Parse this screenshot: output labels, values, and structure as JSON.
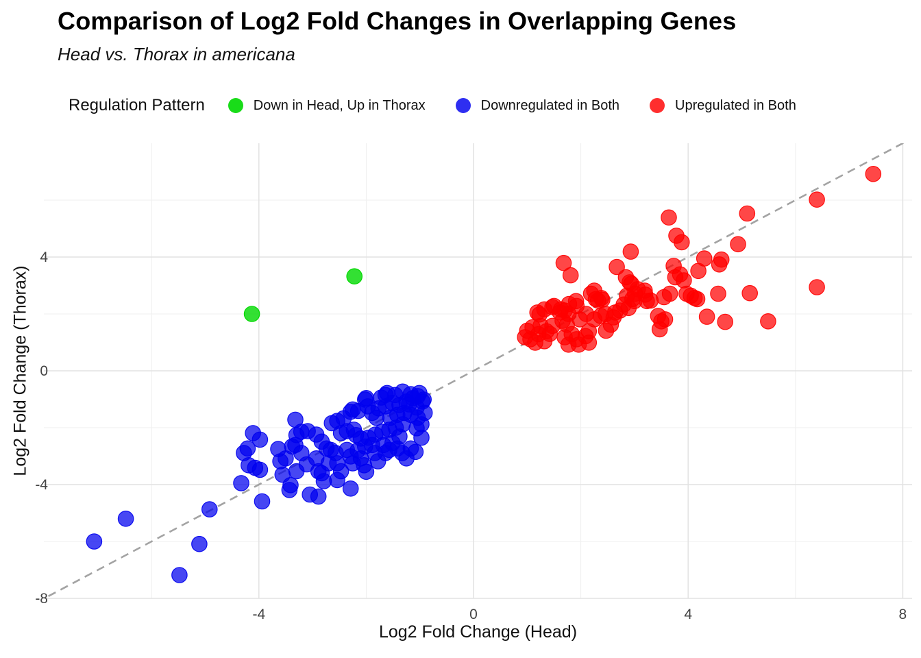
{
  "chart_data": {
    "type": "scatter",
    "title": "Comparison of Log2 Fold Changes in Overlapping Genes",
    "subtitle": "Head vs. Thorax in americana",
    "legend_title": "Regulation Pattern",
    "legend_position": "top",
    "xlabel": "Log2 Fold Change (Head)",
    "ylabel": "Log2 Fold Change (Thorax)",
    "xlim": [
      -8.03,
      8.17
    ],
    "ylim": [
      -8.0,
      8.0
    ],
    "x_ticks": [
      -4,
      0,
      4,
      8
    ],
    "y_ticks": [
      -8,
      -4,
      0,
      4
    ],
    "x_minor_ticks": [
      -6,
      -2,
      2,
      6
    ],
    "y_minor_ticks": [
      -6,
      -2,
      2,
      6
    ],
    "grid": "on",
    "background": "#ffffff",
    "grid_major_color": "#e2e2e2",
    "grid_minor_color": "#efefef",
    "reference_line": {
      "description": "y = x identity line",
      "style": "dashed",
      "color": "#a3a3a3"
    },
    "series": [
      {
        "name": "Down in Head, Up in Thorax",
        "color": "#00d800",
        "opacity": 0.8,
        "points": [
          [
            -4.13,
            2.0
          ],
          [
            -2.22,
            3.32
          ]
        ]
      },
      {
        "name": "Downregulated in Both",
        "color": "#0000ee",
        "opacity": 0.72,
        "points": [
          [
            -7.07,
            -6.0
          ],
          [
            -6.48,
            -5.2
          ],
          [
            -5.48,
            -7.18
          ],
          [
            -5.11,
            -6.09
          ],
          [
            -4.92,
            -4.87
          ],
          [
            -4.33,
            -3.95
          ],
          [
            -4.28,
            -2.89
          ],
          [
            -4.21,
            -2.73
          ],
          [
            -4.19,
            -3.32
          ],
          [
            -4.11,
            -2.19
          ],
          [
            -4.07,
            -3.41
          ],
          [
            -3.98,
            -2.42
          ],
          [
            -3.98,
            -3.48
          ],
          [
            -3.94,
            -4.59
          ],
          [
            -3.64,
            -2.75
          ],
          [
            -3.6,
            -3.18
          ],
          [
            -3.56,
            -3.65
          ],
          [
            -3.5,
            -3.08
          ],
          [
            -3.43,
            -4.19
          ],
          [
            -3.41,
            -4.02
          ],
          [
            -3.38,
            -2.66
          ],
          [
            -3.32,
            -1.72
          ],
          [
            -3.32,
            -2.61
          ],
          [
            -3.3,
            -2.26
          ],
          [
            -3.3,
            -3.53
          ],
          [
            -3.21,
            -2.14
          ],
          [
            -3.21,
            -2.89
          ],
          [
            -3.11,
            -3.29
          ],
          [
            -3.09,
            -2.12
          ],
          [
            -3.05,
            -4.35
          ],
          [
            -2.93,
            -2.24
          ],
          [
            -2.93,
            -3.08
          ],
          [
            -2.89,
            -3.53
          ],
          [
            -2.89,
            -4.42
          ],
          [
            -2.83,
            -2.49
          ],
          [
            -2.83,
            -3.6
          ],
          [
            -2.79,
            -3.88
          ],
          [
            -2.74,
            -2.73
          ],
          [
            -2.7,
            -3.25
          ],
          [
            -2.66,
            -2.78
          ],
          [
            -2.64,
            -1.84
          ],
          [
            -2.57,
            -2.89
          ],
          [
            -2.54,
            -1.76
          ],
          [
            -2.54,
            -3.25
          ],
          [
            -2.54,
            -3.84
          ],
          [
            -2.47,
            -2.19
          ],
          [
            -2.47,
            -3.53
          ],
          [
            -2.42,
            -1.67
          ],
          [
            -2.36,
            -2.12
          ],
          [
            -2.36,
            -2.78
          ],
          [
            -2.29,
            -1.44
          ],
          [
            -2.29,
            -3.01
          ],
          [
            -2.29,
            -4.14
          ],
          [
            -2.25,
            -1.36
          ],
          [
            -2.25,
            -3.25
          ],
          [
            -2.23,
            -2.07
          ],
          [
            -2.19,
            -2.26
          ],
          [
            -2.16,
            -2.8
          ],
          [
            -2.15,
            -1.41
          ],
          [
            -2.1,
            -2.38
          ],
          [
            -2.1,
            -3.08
          ],
          [
            -2.04,
            -3.32
          ],
          [
            -2.02,
            -1.01
          ],
          [
            -2.02,
            -2.66
          ],
          [
            -2.0,
            -0.96
          ],
          [
            -2.0,
            -3.55
          ],
          [
            -1.97,
            -1.25
          ],
          [
            -1.96,
            -2.35
          ],
          [
            -1.89,
            -1.48
          ],
          [
            -1.89,
            -2.61
          ],
          [
            -1.84,
            -2.89
          ],
          [
            -1.83,
            -2.24
          ],
          [
            -1.81,
            -1.65
          ],
          [
            -1.78,
            -3.18
          ],
          [
            -1.77,
            -1.32
          ],
          [
            -1.72,
            -0.94
          ],
          [
            -1.7,
            -2.14
          ],
          [
            -1.68,
            -2.61
          ],
          [
            -1.64,
            -0.85
          ],
          [
            -1.64,
            -1.25
          ],
          [
            -1.64,
            -2.89
          ],
          [
            -1.61,
            -0.78
          ],
          [
            -1.57,
            -2.07
          ],
          [
            -1.57,
            -2.78
          ],
          [
            -1.55,
            -1.65
          ],
          [
            -1.51,
            -1.13
          ],
          [
            -1.51,
            -2.54
          ],
          [
            -1.46,
            -0.85
          ],
          [
            -1.45,
            -2.0
          ],
          [
            -1.42,
            -1.55
          ],
          [
            -1.42,
            -2.73
          ],
          [
            -1.38,
            -1.2
          ],
          [
            -1.38,
            -2.31
          ],
          [
            -1.33,
            -2.89
          ],
          [
            -1.32,
            -0.73
          ],
          [
            -1.32,
            -1.88
          ],
          [
            -1.29,
            -1.48
          ],
          [
            -1.25,
            -1.08
          ],
          [
            -1.25,
            -3.08
          ],
          [
            -1.2,
            -1.18
          ],
          [
            -1.17,
            -0.82
          ],
          [
            -1.17,
            -1.55
          ],
          [
            -1.17,
            -2.73
          ],
          [
            -1.13,
            -0.96
          ],
          [
            -1.08,
            -2.85
          ],
          [
            -1.06,
            -1.29
          ],
          [
            -1.06,
            -2.02
          ],
          [
            -1.04,
            -0.89
          ],
          [
            -1.04,
            -1.65
          ],
          [
            -1.01,
            -0.78
          ],
          [
            -0.97,
            -1.88
          ],
          [
            -0.97,
            -2.35
          ],
          [
            -0.95,
            -1.08
          ],
          [
            -0.93,
            -1.01
          ],
          [
            -0.91,
            -1.48
          ]
        ]
      },
      {
        "name": "Upregulated in Both",
        "color": "#ff0000",
        "opacity": 0.72,
        "points": [
          [
            7.45,
            6.92
          ],
          [
            6.4,
            6.02
          ],
          [
            6.4,
            2.94
          ],
          [
            5.49,
            1.74
          ],
          [
            5.15,
            2.73
          ],
          [
            5.1,
            5.53
          ],
          [
            4.93,
            4.45
          ],
          [
            4.69,
            1.72
          ],
          [
            4.62,
            3.91
          ],
          [
            4.58,
            3.74
          ],
          [
            4.56,
            2.71
          ],
          [
            4.35,
            1.9
          ],
          [
            4.3,
            3.95
          ],
          [
            4.19,
            3.51
          ],
          [
            4.17,
            2.52
          ],
          [
            4.12,
            2.56
          ],
          [
            4.05,
            2.64
          ],
          [
            3.97,
            2.71
          ],
          [
            3.92,
            3.18
          ],
          [
            3.88,
            4.52
          ],
          [
            3.85,
            3.39
          ],
          [
            3.78,
            4.75
          ],
          [
            3.76,
            3.29
          ],
          [
            3.73,
            3.69
          ],
          [
            3.66,
            2.71
          ],
          [
            3.64,
            5.39
          ],
          [
            3.57,
            1.81
          ],
          [
            3.55,
            2.59
          ],
          [
            3.5,
            1.74
          ],
          [
            3.47,
            1.46
          ],
          [
            3.44,
            1.93
          ],
          [
            3.3,
            2.47
          ],
          [
            3.23,
            2.45
          ],
          [
            3.2,
            2.68
          ],
          [
            3.19,
            2.82
          ],
          [
            3.06,
            2.87
          ],
          [
            3.01,
            2.71
          ],
          [
            3.0,
            2.45
          ],
          [
            2.96,
            2.52
          ],
          [
            2.94,
            3.06
          ],
          [
            2.93,
            4.19
          ],
          [
            2.91,
            3.11
          ],
          [
            2.89,
            2.21
          ],
          [
            2.86,
            2.64
          ],
          [
            2.84,
            3.29
          ],
          [
            2.8,
            2.33
          ],
          [
            2.73,
            2.12
          ],
          [
            2.67,
            3.65
          ],
          [
            2.64,
            2.05
          ],
          [
            2.61,
            1.88
          ],
          [
            2.56,
            1.62
          ],
          [
            2.47,
            1.41
          ],
          [
            2.46,
            2.0
          ],
          [
            2.4,
            2.5
          ],
          [
            2.38,
            2.56
          ],
          [
            2.37,
            1.93
          ],
          [
            2.32,
            2.47
          ],
          [
            2.28,
            2.52
          ],
          [
            2.25,
            2.82
          ],
          [
            2.25,
            1.81
          ],
          [
            2.19,
            2.71
          ],
          [
            2.15,
            1.39
          ],
          [
            2.15,
            0.99
          ],
          [
            2.1,
            2.0
          ],
          [
            2.09,
            1.22
          ],
          [
            1.98,
            1.81
          ],
          [
            1.96,
            0.92
          ],
          [
            1.92,
            2.28
          ],
          [
            1.92,
            1.11
          ],
          [
            1.91,
            2.45
          ],
          [
            1.83,
            1.29
          ],
          [
            1.81,
            3.36
          ],
          [
            1.78,
            2.35
          ],
          [
            1.77,
            2.0
          ],
          [
            1.77,
            0.92
          ],
          [
            1.74,
            1.62
          ],
          [
            1.7,
            2.12
          ],
          [
            1.7,
            1.18
          ],
          [
            1.68,
            3.79
          ],
          [
            1.66,
            1.76
          ],
          [
            1.63,
            2.16
          ],
          [
            1.61,
            2.05
          ],
          [
            1.5,
            2.28
          ],
          [
            1.47,
            2.24
          ],
          [
            1.47,
            1.58
          ],
          [
            1.42,
            1.3
          ],
          [
            1.36,
            1.39
          ],
          [
            1.32,
            2.16
          ],
          [
            1.32,
            1.04
          ],
          [
            1.25,
            1.58
          ],
          [
            1.23,
            1.98
          ],
          [
            1.21,
            1.29
          ],
          [
            1.19,
            2.05
          ],
          [
            1.15,
            0.99
          ],
          [
            1.1,
            1.53
          ],
          [
            1.06,
            1.11
          ],
          [
            1.0,
            1.41
          ],
          [
            0.96,
            1.18
          ]
        ]
      }
    ]
  }
}
